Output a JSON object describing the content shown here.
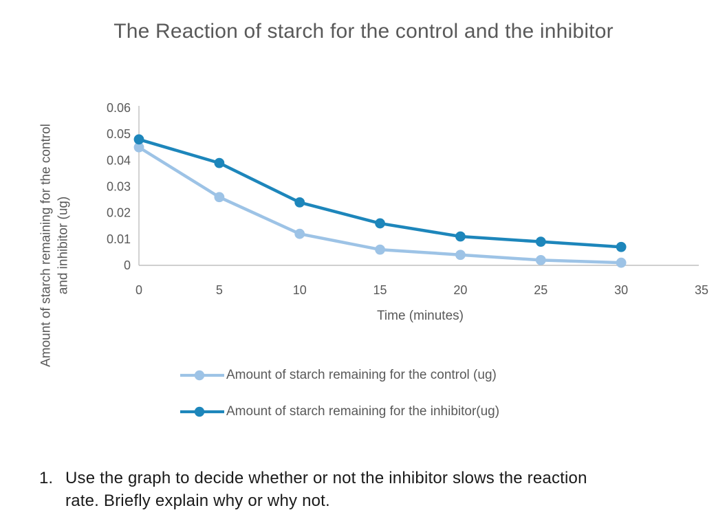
{
  "chart_data": {
    "type": "line",
    "title": "The Reaction of starch for the control and the inhibitor",
    "xlabel": "Time (minutes)",
    "ylabel": "Amount of starch remaining for the control and inhibitor (ug)",
    "x": [
      0,
      5,
      10,
      15,
      20,
      25,
      30
    ],
    "series": [
      {
        "name": "Amount of starch remaining for the control (ug)",
        "color": "#9DC3E6",
        "values": [
          0.045,
          0.026,
          0.012,
          0.006,
          0.004,
          0.002,
          0.001
        ]
      },
      {
        "name": "Amount of starch remaining for the inhibitor(ug)",
        "color": "#1D86BB",
        "values": [
          0.048,
          0.039,
          0.024,
          0.016,
          0.011,
          0.009,
          0.007
        ]
      }
    ],
    "xlim": [
      0,
      35
    ],
    "ylim": [
      0,
      0.06
    ],
    "xticks": [
      "0",
      "5",
      "10",
      "15",
      "20",
      "25",
      "30",
      "35"
    ],
    "yticks": [
      "0",
      "0.01",
      "0.02",
      "0.03",
      "0.04",
      "0.05",
      "0.06"
    ],
    "grid": false,
    "legend_position": "bottom",
    "axis_color": "#BFBFBF",
    "text_color": "#595959",
    "marker": "circle"
  },
  "question": {
    "number": "1.",
    "text": "Use the graph to decide whether or not the inhibitor slows the reaction rate. Briefly explain why or why not."
  }
}
